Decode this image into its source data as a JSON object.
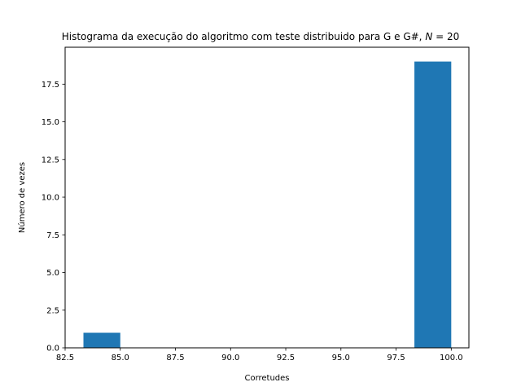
{
  "chart_data": {
    "type": "bar",
    "title": "Histograma da execução do algoritmo com teste distribuido para G e G#, N = 20",
    "title_prefix": "Histograma da execução do algoritmo com teste distribuido para G e G#, ",
    "title_var": "N",
    "title_suffix": " = 20",
    "xlabel": "Corretudes",
    "ylabel": "Número de vezes",
    "xlim": [
      82.5,
      100.8
    ],
    "ylim": [
      0,
      19.95
    ],
    "xticks": [
      82.5,
      85.0,
      87.5,
      90.0,
      92.5,
      95.0,
      97.5,
      100.0
    ],
    "xtick_labels": [
      "82.5",
      "85.0",
      "87.5",
      "90.0",
      "92.5",
      "95.0",
      "97.5",
      "100.0"
    ],
    "yticks": [
      0.0,
      2.5,
      5.0,
      7.5,
      10.0,
      12.5,
      15.0,
      17.5
    ],
    "ytick_labels": [
      "0.0",
      "2.5",
      "5.0",
      "7.5",
      "10.0",
      "12.5",
      "15.0",
      "17.5"
    ],
    "bins": [
      {
        "x0": 83.33,
        "x1": 85.0,
        "count": 1
      },
      {
        "x0": 85.0,
        "x1": 86.67,
        "count": 0
      },
      {
        "x0": 86.67,
        "x1": 88.33,
        "count": 0
      },
      {
        "x0": 88.33,
        "x1": 90.0,
        "count": 0
      },
      {
        "x0": 90.0,
        "x1": 91.67,
        "count": 0
      },
      {
        "x0": 91.67,
        "x1": 93.33,
        "count": 0
      },
      {
        "x0": 93.33,
        "x1": 95.0,
        "count": 0
      },
      {
        "x0": 95.0,
        "x1": 96.67,
        "count": 0
      },
      {
        "x0": 96.67,
        "x1": 98.33,
        "count": 0
      },
      {
        "x0": 98.33,
        "x1": 100.0,
        "count": 19
      }
    ],
    "bar_color": "#1f77b4",
    "grid": false
  }
}
